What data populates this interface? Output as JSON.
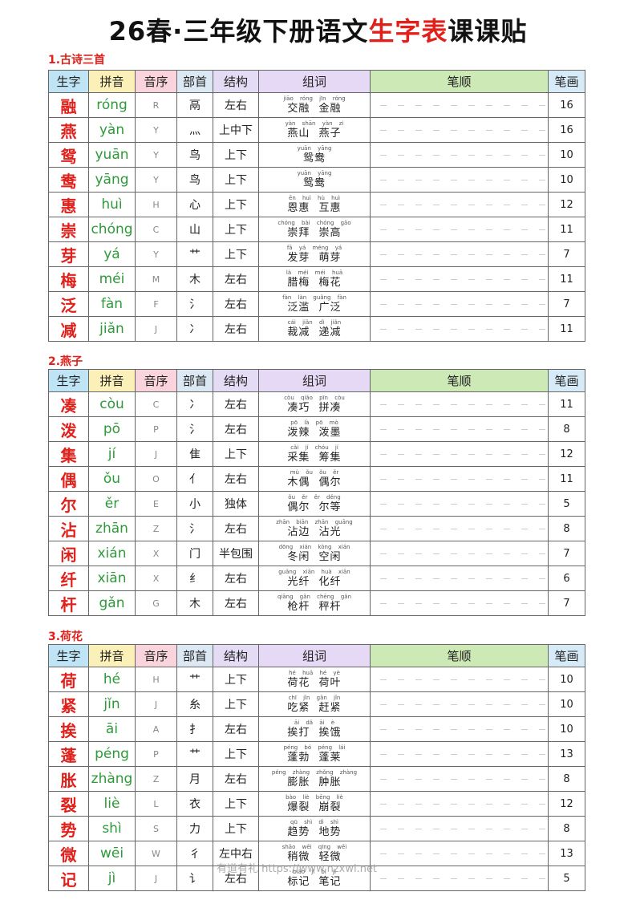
{
  "header": {
    "title_prefix": "26春·三年级下册语文",
    "title_highlight": "生字表",
    "title_suffix": "课课贴"
  },
  "columns": [
    "生字",
    "拼音",
    "音序",
    "部首",
    "结构",
    "组词",
    "笔顺",
    "笔画"
  ],
  "sections": [
    {
      "title": "1.古诗三首",
      "rows": [
        {
          "char": "融",
          "pinyin": "róng",
          "initial": "R",
          "radical": "鬲",
          "structure": "左右",
          "words_pinyin": "jiāo róng jīn róng",
          "words": "交融 金融",
          "strokes": 16
        },
        {
          "char": "燕",
          "pinyin": "yàn",
          "initial": "Y",
          "radical": "灬",
          "structure": "上中下",
          "words_pinyin": "yàn shān yàn zi",
          "words": "燕山 燕子",
          "strokes": 16
        },
        {
          "char": "鸳",
          "pinyin": "yuān",
          "initial": "Y",
          "radical": "鸟",
          "structure": "上下",
          "words_pinyin": "yuān yāng",
          "words": "鸳鸯",
          "strokes": 10
        },
        {
          "char": "鸯",
          "pinyin": "yāng",
          "initial": "Y",
          "radical": "鸟",
          "structure": "上下",
          "words_pinyin": "yuān yāng",
          "words": "鸳鸯",
          "strokes": 10
        },
        {
          "char": "惠",
          "pinyin": "huì",
          "initial": "H",
          "radical": "心",
          "structure": "上下",
          "words_pinyin": "ēn huì hù huì",
          "words": "恩惠 互惠",
          "strokes": 12
        },
        {
          "char": "崇",
          "pinyin": "chóng",
          "initial": "C",
          "radical": "山",
          "structure": "上下",
          "words_pinyin": "chóng bài chóng gāo",
          "words": "崇拜 崇高",
          "strokes": 11
        },
        {
          "char": "芽",
          "pinyin": "yá",
          "initial": "Y",
          "radical": "艹",
          "structure": "上下",
          "words_pinyin": "fā yá méng yá",
          "words": "发芽 萌芽",
          "strokes": 7
        },
        {
          "char": "梅",
          "pinyin": "méi",
          "initial": "M",
          "radical": "木",
          "structure": "左右",
          "words_pinyin": "là méi méi huā",
          "words": "腊梅 梅花",
          "strokes": 11
        },
        {
          "char": "泛",
          "pinyin": "fàn",
          "initial": "F",
          "radical": "氵",
          "structure": "左右",
          "words_pinyin": "fàn làn guǎng fàn",
          "words": "泛滥 广泛",
          "strokes": 7
        },
        {
          "char": "减",
          "pinyin": "jiǎn",
          "initial": "J",
          "radical": "冫",
          "structure": "左右",
          "words_pinyin": "cái jiǎn dì jiǎn",
          "words": "裁减 递减",
          "strokes": 11
        }
      ]
    },
    {
      "title": "2.燕子",
      "rows": [
        {
          "char": "凑",
          "pinyin": "còu",
          "initial": "C",
          "radical": "冫",
          "structure": "左右",
          "words_pinyin": "còu qiǎo pīn còu",
          "words": "凑巧 拼凑",
          "strokes": 11
        },
        {
          "char": "泼",
          "pinyin": "pō",
          "initial": "P",
          "radical": "氵",
          "structure": "左右",
          "words_pinyin": "pō là pō mò",
          "words": "泼辣 泼墨",
          "strokes": 8
        },
        {
          "char": "集",
          "pinyin": "jí",
          "initial": "J",
          "radical": "隹",
          "structure": "上下",
          "words_pinyin": "cǎi jí chóu jí",
          "words": "采集 筹集",
          "strokes": 12
        },
        {
          "char": "偶",
          "pinyin": "ǒu",
          "initial": "O",
          "radical": "亻",
          "structure": "左右",
          "words_pinyin": "mù ǒu ǒu ěr",
          "words": "木偶 偶尔",
          "strokes": 11
        },
        {
          "char": "尔",
          "pinyin": "ěr",
          "initial": "E",
          "radical": "小",
          "structure": "独体",
          "words_pinyin": "ǒu ěr ěr děng",
          "words": "偶尔 尔等",
          "strokes": 5
        },
        {
          "char": "沾",
          "pinyin": "zhān",
          "initial": "Z",
          "radical": "氵",
          "structure": "左右",
          "words_pinyin": "zhān biān zhān guāng",
          "words": "沾边 沾光",
          "strokes": 8
        },
        {
          "char": "闲",
          "pinyin": "xián",
          "initial": "X",
          "radical": "门",
          "structure": "半包围",
          "words_pinyin": "dōng xián kòng xián",
          "words": "冬闲 空闲",
          "strokes": 7
        },
        {
          "char": "纤",
          "pinyin": "xiān",
          "initial": "X",
          "radical": "纟",
          "structure": "左右",
          "words_pinyin": "guāng xiān huà xiān",
          "words": "光纤 化纤",
          "strokes": 6
        },
        {
          "char": "杆",
          "pinyin": "gǎn",
          "initial": "G",
          "radical": "木",
          "structure": "左右",
          "words_pinyin": "qiāng gǎn chēng gǎn",
          "words": "枪杆 秤杆",
          "strokes": 7
        }
      ]
    },
    {
      "title": "3.荷花",
      "rows": [
        {
          "char": "荷",
          "pinyin": "hé",
          "initial": "H",
          "radical": "艹",
          "structure": "上下",
          "words_pinyin": "hé huā hé yè",
          "words": "荷花 荷叶",
          "strokes": 10
        },
        {
          "char": "紧",
          "pinyin": "jǐn",
          "initial": "J",
          "radical": "糸",
          "structure": "上下",
          "words_pinyin": "chī jǐn gǎn jǐn",
          "words": "吃紧 赶紧",
          "strokes": 10
        },
        {
          "char": "挨",
          "pinyin": "āi",
          "initial": "A",
          "radical": "扌",
          "structure": "左右",
          "words_pinyin": "āi dǎ āi è",
          "words": "挨打 挨饿",
          "strokes": 10
        },
        {
          "char": "蓬",
          "pinyin": "péng",
          "initial": "P",
          "radical": "艹",
          "structure": "上下",
          "words_pinyin": "péng bó péng lái",
          "words": "蓬勃 蓬莱",
          "strokes": 13
        },
        {
          "char": "胀",
          "pinyin": "zhàng",
          "initial": "Z",
          "radical": "月",
          "structure": "左右",
          "words_pinyin": "péng zhàng zhǒng zhàng",
          "words": "膨胀 肿胀",
          "strokes": 8
        },
        {
          "char": "裂",
          "pinyin": "liè",
          "initial": "L",
          "radical": "衣",
          "structure": "上下",
          "words_pinyin": "bào liè bēng liè",
          "words": "爆裂 崩裂",
          "strokes": 12
        },
        {
          "char": "势",
          "pinyin": "shì",
          "initial": "S",
          "radical": "力",
          "structure": "上下",
          "words_pinyin": "qū shì dì shì",
          "words": "趋势 地势",
          "strokes": 8
        },
        {
          "char": "微",
          "pinyin": "wēi",
          "initial": "W",
          "radical": "彳",
          "structure": "左中右",
          "words_pinyin": "shāo wēi qīng wēi",
          "words": "稍微 轻微",
          "strokes": 13
        },
        {
          "char": "记",
          "pinyin": "jì",
          "initial": "J",
          "radical": "讠",
          "structure": "左右",
          "words_pinyin": "biāo jì bǐ jì",
          "words": "标记 笔记",
          "strokes": 5
        }
      ]
    }
  ],
  "watermark": "有道有礼 https://www.nzxwl.net"
}
